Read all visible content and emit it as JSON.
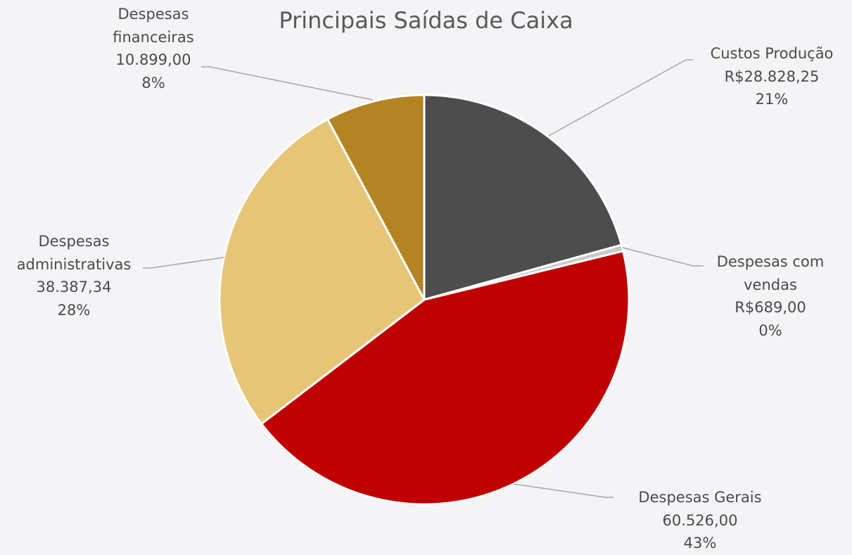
{
  "chart_data": {
    "type": "pie",
    "title": "Principais Saídas de Caixa",
    "categories": [
      "Custos Produção",
      "Despesas com vendas",
      "Despesas Gerais",
      "Despesas administrativas",
      "Despesas financeiras"
    ],
    "values": [
      28828.25,
      689,
      60526,
      38387.34,
      10899
    ],
    "value_labels": [
      "R$28.828,25",
      "R$689,00",
      "60.526,00",
      "38.387,34",
      "10.899,00"
    ],
    "percent_labels": [
      "21%",
      "0%",
      "43%",
      "28%",
      "8%"
    ],
    "colors": [
      "#4d4d4d",
      "#c8c8c8",
      "#c00000",
      "#e6c577",
      "#b38421"
    ]
  }
}
